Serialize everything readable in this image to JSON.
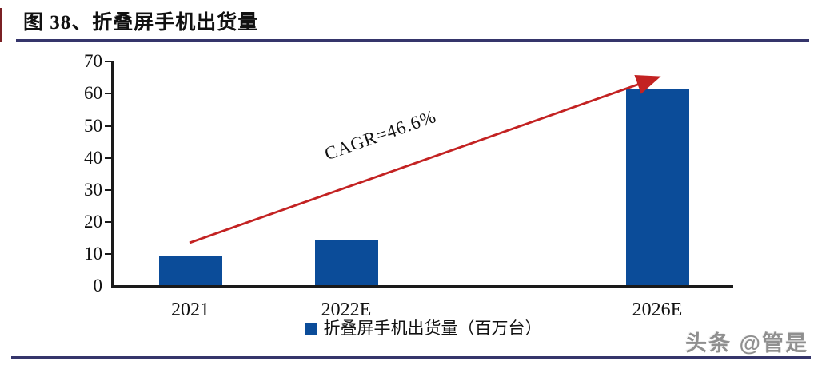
{
  "figure": {
    "title": "图 38、折叠屏手机出货量"
  },
  "chart_data": {
    "type": "bar",
    "title": "图 38、折叠屏手机出货量",
    "categories": [
      "2021",
      "2022E",
      "2026E"
    ],
    "values": [
      9,
      14,
      61
    ],
    "series_name": "折叠屏手机出货量（百万台）",
    "legend_label": "折叠屏手机出货量（百万台）",
    "legend_position": "bottom",
    "annotation": "CAGR=46.6%",
    "ylim": [
      0,
      70
    ],
    "yticks": [
      0,
      10,
      20,
      30,
      40,
      50,
      60,
      70
    ],
    "grid": false,
    "bar_color": "#0b4c99",
    "arrow_color": "#c32222",
    "rule_color": "#35356b"
  },
  "watermark": "头条 @管是"
}
